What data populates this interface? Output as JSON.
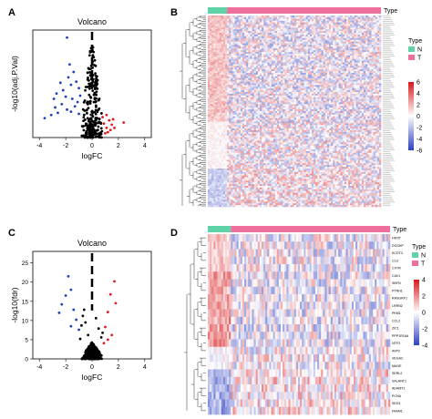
{
  "panels": {
    "A": "A",
    "B": "B",
    "C": "C",
    "D": "D"
  },
  "chart_data": [
    {
      "panel": "A",
      "type": "scatter",
      "title": "Volcano",
      "xlabel": "logFC",
      "ylabel": "-log10(adj.P.Val)",
      "xlim": [
        -4.5,
        4.5
      ],
      "ylim": [
        0,
        10
      ],
      "xticks": [
        -4,
        -2,
        0,
        2,
        4
      ],
      "threshold_x": 0,
      "colors": {
        "up": "#e31a1c",
        "down": "#1f3fbf",
        "ns": "#000000",
        "threshold": "#000000"
      },
      "down": [
        [
          -3.1,
          2.1
        ],
        [
          -2.9,
          3.6
        ],
        [
          -2.7,
          4.1
        ],
        [
          -2.4,
          5.1
        ],
        [
          -2.2,
          4.4
        ],
        [
          -2.0,
          3.8
        ],
        [
          -1.8,
          5.6
        ],
        [
          -1.6,
          4.9
        ],
        [
          -1.5,
          3.6
        ],
        [
          -1.3,
          2.9
        ],
        [
          -1.9,
          2.6
        ],
        [
          -2.6,
          2.3
        ],
        [
          -1.4,
          6.1
        ],
        [
          -1.7,
          6.8
        ],
        [
          -1.2,
          5.2
        ],
        [
          -1.0,
          4.6
        ],
        [
          -1.1,
          3.3
        ],
        [
          -2.3,
          3.1
        ],
        [
          -0.9,
          3.9
        ],
        [
          -1.6,
          2.4
        ],
        [
          -3.6,
          1.8
        ],
        [
          -1.9,
          9.3
        ],
        [
          -2.8,
          2.8
        ],
        [
          -1.0,
          2.2
        ]
      ],
      "up": [
        [
          0.9,
          1.3
        ],
        [
          1.1,
          0.9
        ],
        [
          1.3,
          1.6
        ],
        [
          1.5,
          1.2
        ],
        [
          1.2,
          0.5
        ],
        [
          1.7,
          0.9
        ],
        [
          1.0,
          0.4
        ],
        [
          0.8,
          1.9
        ],
        [
          1.4,
          0.7
        ],
        [
          2.4,
          1.4
        ],
        [
          1.6,
          1.7
        ],
        [
          1.1,
          2.1
        ]
      ],
      "ns_band_halfwidth": 0.85,
      "ns_peak": 9.5
    },
    {
      "panel": "B",
      "type": "heatmap",
      "top_annotation_label": "Type",
      "groups": [
        "N",
        "T"
      ],
      "group_colors": {
        "N": "#5fd3a5",
        "T": "#ee6f9e"
      },
      "legend_title": "Type",
      "colorbar_ticks": [
        6,
        4,
        2,
        0,
        -2,
        -4,
        -6
      ],
      "colorbar_range": [
        -6,
        6
      ],
      "colors": {
        "high": "#d7191c",
        "mid": "#ffffff",
        "low": "#2c3fbf"
      }
    },
    {
      "panel": "C",
      "type": "scatter",
      "title": "Volcano",
      "xlabel": "logFC",
      "ylabel": "-log10(fdr)",
      "xlim": [
        -4.5,
        4.5
      ],
      "ylim": [
        0,
        28
      ],
      "yticks": [
        0,
        5,
        10,
        15,
        20,
        25
      ],
      "xticks": [
        -4,
        -2,
        0,
        2,
        4
      ],
      "threshold_x": 0,
      "colors": {
        "up": "#e31a1c",
        "down": "#1f3fbf",
        "ns": "#000000",
        "threshold": "#000000"
      },
      "down": [
        [
          -1.8,
          21.5
        ],
        [
          -1.6,
          18.0
        ],
        [
          -2.0,
          16.5
        ],
        [
          -2.3,
          14.2
        ],
        [
          -1.4,
          12.8
        ],
        [
          -1.2,
          10.2
        ],
        [
          -1.6,
          8.5
        ],
        [
          -2.5,
          12.0
        ],
        [
          -1.0,
          7.6
        ]
      ],
      "up": [
        [
          1.7,
          20.2
        ],
        [
          1.4,
          16.8
        ],
        [
          1.8,
          14.5
        ],
        [
          1.2,
          12.2
        ],
        [
          1.0,
          8.3
        ],
        [
          1.5,
          6.2
        ],
        [
          1.2,
          5.0
        ],
        [
          0.9,
          4.1
        ]
      ],
      "ns": [
        [
          -0.6,
          12.8
        ],
        [
          -0.5,
          9.5
        ],
        [
          -0.8,
          8.7
        ],
        [
          0.3,
          10.6
        ],
        [
          0.5,
          7.9
        ],
        [
          -0.3,
          6.2
        ],
        [
          0.7,
          5.6
        ],
        [
          -0.9,
          5.2
        ],
        [
          0.8,
          6.8
        ],
        [
          -0.7,
          11.2
        ]
      ],
      "ns_band_halfwidth": 0.8,
      "ns_peak": 4.5
    },
    {
      "panel": "D",
      "type": "heatmap",
      "top_annotation_label": "Type",
      "groups": [
        "N",
        "T"
      ],
      "group_colors": {
        "N": "#5fd3a5",
        "T": "#ee6f9e"
      },
      "legend_title": "Type",
      "colorbar_ticks": [
        4,
        2,
        0,
        -2,
        -4
      ],
      "colorbar_range": [
        -4,
        4
      ],
      "colors": {
        "high": "#d7191c",
        "mid": "#ffffff",
        "low": "#2c3fbf"
      },
      "genes": [
        "HIF3T",
        "DGSHP",
        "KCDT3",
        "CLU",
        "CXTR",
        "CAV1",
        "SBFN",
        "PTRH1",
        "RASGRF1",
        "LRRN2",
        "PKM1",
        "CCL2",
        "ZIC1",
        "PPP1R16A",
        "NTF3",
        "AVP2",
        "VEGAC",
        "MAGE",
        "SERL2",
        "SALANT1",
        "ADAMT1",
        "PCNA",
        "SES3",
        "FAAM1"
      ]
    }
  ]
}
